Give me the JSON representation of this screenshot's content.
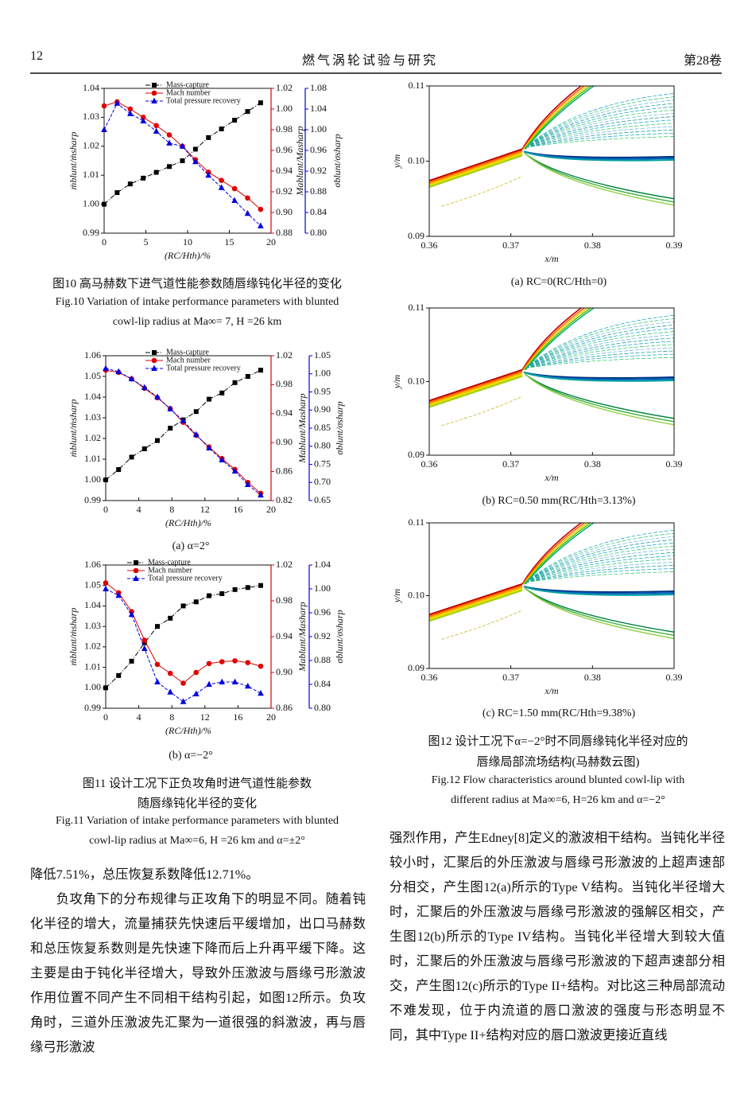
{
  "header": {
    "page_number": "12",
    "journal": "燃气涡轮试验与研究",
    "volume": "第28卷"
  },
  "chart_data": [
    {
      "type": "line",
      "x": [
        0,
        1.56,
        3.13,
        4.69,
        6.25,
        7.81,
        9.38,
        10.94,
        12.5,
        14.06,
        15.63,
        17.19,
        18.75
      ],
      "xlim": [
        0,
        20
      ],
      "xticks": [
        0,
        5,
        10,
        15,
        20
      ],
      "x_label": "(RC/Hth)/%",
      "ylim": [
        0.99,
        1.04
      ],
      "yticks": [
        0.99,
        {
          "value": 1,
          "label": "1.00"
        },
        1.01,
        1.02,
        1.03,
        1.04
      ],
      "y_label": "ṁblunt/ṁsharp",
      "y2lim": [
        0.88,
        1.02
      ],
      "y2ticks": [
        0.88,
        {
          "value": 0.9,
          "label": "0.90"
        },
        0.92,
        0.94,
        0.96,
        0.98,
        {
          "value": 1,
          "label": "1.00"
        },
        1.02
      ],
      "y2_label": "Mablunt/Masharp",
      "y3lim": [
        0.8,
        1.08
      ],
      "y3ticks": [
        {
          "value": 0.8,
          "label": "0.80"
        },
        0.84,
        0.88,
        0.92,
        0.96,
        {
          "value": 1,
          "label": "1.00"
        },
        1.04,
        1.08
      ],
      "y3_label": "σblunt/σsharp",
      "series": [
        {
          "name": "Mass-capture",
          "color": "#000000",
          "marker": "square",
          "dash": "6 2 1 2",
          "axis": "y",
          "values": [
            1.0,
            1.004,
            1.007,
            1.009,
            1.011,
            1.013,
            1.015,
            1.019,
            1.023,
            1.026,
            1.029,
            1.032,
            1.035
          ]
        },
        {
          "name": "Mach number",
          "color": "#e00000",
          "marker": "circle",
          "dash": "none",
          "axis": "y2",
          "values": [
            1.003,
            1.007,
            1.0,
            0.992,
            0.984,
            0.975,
            0.964,
            0.951,
            0.939,
            0.931,
            0.923,
            0.914,
            0.903
          ]
        },
        {
          "name": "Total pressure recovery",
          "color": "#0000e0",
          "marker": "triangle",
          "dash": "4 2",
          "axis": "y3",
          "values": [
            1.0,
            1.051,
            1.031,
            1.017,
            0.997,
            0.974,
            0.968,
            0.938,
            0.912,
            0.888,
            0.863,
            0.838,
            0.814
          ]
        }
      ]
    },
    {
      "type": "line",
      "subcaption": "(a)  α=2°",
      "x": [
        0,
        1.56,
        3.13,
        4.69,
        6.25,
        7.81,
        9.38,
        10.94,
        12.5,
        14.06,
        15.63,
        17.19,
        18.75
      ],
      "xlim": [
        0,
        20
      ],
      "xticks": [
        0,
        4,
        8,
        12,
        16,
        20
      ],
      "x_label": "(RC/Hth)/%",
      "ylim": [
        0.99,
        1.06
      ],
      "yticks": [
        0.99,
        {
          "value": 1,
          "label": "1.00"
        },
        1.01,
        1.02,
        1.03,
        1.04,
        1.05,
        1.06
      ],
      "y_label": "ṁblunt/ṁsharp",
      "y2lim": [
        0.82,
        1.02
      ],
      "y2ticks": [
        0.82,
        0.86,
        {
          "value": 0.9,
          "label": "0.90"
        },
        0.94,
        0.98,
        1.02
      ],
      "y2_label": "Mablunt/Masharp",
      "y3lim": [
        0.65,
        1.05
      ],
      "y3ticks": [
        0.65,
        {
          "value": 0.7,
          "label": "0.70"
        },
        0.75,
        {
          "value": 0.8,
          "label": "0.80"
        },
        0.85,
        {
          "value": 0.9,
          "label": "0.90"
        },
        0.95,
        {
          "value": 1,
          "label": "1.00"
        },
        1.05
      ],
      "y3_label": "σblunt/σsharp",
      "series": [
        {
          "name": "Mass-capture",
          "color": "#000000",
          "marker": "square",
          "dash": "6 2 1 2",
          "axis": "y",
          "values": [
            1.0,
            1.005,
            1.011,
            1.015,
            1.019,
            1.025,
            1.029,
            1.033,
            1.039,
            1.042,
            1.047,
            1.05,
            1.053
          ]
        },
        {
          "name": "Mach number",
          "color": "#e00000",
          "marker": "circle",
          "dash": "none",
          "axis": "y2",
          "values": [
            1.0,
            0.997,
            0.988,
            0.975,
            0.962,
            0.947,
            0.928,
            0.91,
            0.894,
            0.878,
            0.863,
            0.845,
            0.83
          ]
        },
        {
          "name": "Total pressure recovery",
          "color": "#0000e0",
          "marker": "triangle",
          "dash": "4 2",
          "axis": "y3",
          "values": [
            1.015,
            1.006,
            0.986,
            0.962,
            0.936,
            0.903,
            0.87,
            0.832,
            0.795,
            0.762,
            0.731,
            0.694,
            0.665
          ]
        }
      ]
    },
    {
      "type": "line",
      "subcaption": "(b)  α=−2°",
      "x": [
        0,
        1.56,
        3.13,
        4.69,
        6.25,
        7.81,
        9.38,
        10.94,
        12.5,
        14.06,
        15.63,
        17.19,
        18.75
      ],
      "xlim": [
        0,
        20
      ],
      "xticks": [
        0,
        4,
        8,
        12,
        16,
        20
      ],
      "x_label": "(RC/Hth)/%",
      "ylim": [
        0.99,
        1.06
      ],
      "yticks": [
        0.99,
        {
          "value": 1,
          "label": "1.00"
        },
        1.01,
        1.02,
        1.03,
        1.04,
        1.05,
        1.06
      ],
      "y_label": "ṁblunt/ṁsharp",
      "y2lim": [
        0.86,
        1.02
      ],
      "y2ticks": [
        0.86,
        {
          "value": 0.9,
          "label": "0.90"
        },
        0.94,
        0.98,
        1.02
      ],
      "y2_label": "Mablunt/Masharp",
      "y3lim": [
        0.8,
        1.04
      ],
      "y3ticks": [
        {
          "value": 0.8,
          "label": "0.80"
        },
        0.84,
        0.88,
        0.92,
        0.96,
        {
          "value": 1,
          "label": "1.00"
        },
        1.04
      ],
      "y3_label": "σblunt/σsharp",
      "series": [
        {
          "name": "Mass-capture",
          "color": "#000000",
          "marker": "square",
          "dash": "6 2 1 2",
          "axis": "y",
          "values": [
            1.0,
            1.006,
            1.013,
            1.022,
            1.03,
            1.034,
            1.04,
            1.042,
            1.045,
            1.046,
            1.048,
            1.049,
            1.05
          ]
        },
        {
          "name": "Mach number",
          "color": "#e00000",
          "marker": "circle",
          "dash": "none",
          "axis": "y2",
          "values": [
            1.0,
            0.989,
            0.968,
            0.936,
            0.909,
            0.899,
            0.888,
            0.9,
            0.91,
            0.912,
            0.913,
            0.911,
            0.907
          ]
        },
        {
          "name": "Total pressure recovery",
          "color": "#0000e0",
          "marker": "triangle",
          "dash": "4 2",
          "axis": "y3",
          "values": [
            1.0,
            0.989,
            0.957,
            0.9,
            0.844,
            0.827,
            0.811,
            0.824,
            0.84,
            0.844,
            0.844,
            0.837,
            0.825
          ]
        }
      ]
    },
    {
      "type": "contour",
      "subcaption": "(a)  RC=0(RC/Hth=0)",
      "xlim": [
        0.36,
        0.39
      ],
      "xticks": [
        0.36,
        0.37,
        0.38,
        0.39
      ],
      "x_label": "x/m",
      "ylim": [
        0.09,
        0.11
      ],
      "yticks": [
        0.09,
        {
          "value": 0.1,
          "label": "0.10"
        },
        0.11
      ],
      "y_label": "y/m"
    },
    {
      "type": "contour",
      "subcaption": "(b)  RC=0.50 mm(RC/Hth=3.13%)",
      "xlim": [
        0.36,
        0.39
      ],
      "xticks": [
        0.36,
        0.37,
        0.38,
        0.39
      ],
      "x_label": "x/m",
      "ylim": [
        0.09,
        0.11
      ],
      "yticks": [
        0.09,
        {
          "value": 0.1,
          "label": "0.10"
        },
        0.11
      ],
      "y_label": "y/m"
    },
    {
      "type": "contour",
      "subcaption": "(c)  RC=1.50 mm(RC/Hth=9.38%)",
      "xlim": [
        0.36,
        0.39
      ],
      "xticks": [
        0.36,
        0.37,
        0.38,
        0.39
      ],
      "x_label": "x/m",
      "ylim": [
        0.09,
        0.11
      ],
      "yticks": [
        0.09,
        {
          "value": 0.1,
          "label": "0.10"
        },
        0.11
      ],
      "y_label": "y/m"
    }
  ],
  "captions": {
    "fig10_cn": "图10  高马赫数下进气道性能参数随唇缘钝化半径的变化",
    "fig10_en": [
      "Fig.10  Variation of intake performance parameters with blunted",
      "cowl-lip radius at Ma∞= 7, H =26 km"
    ],
    "fig11_cn": [
      "图11  设计工况下正负攻角时进气道性能参数",
      "随唇缘钝化半径的变化"
    ],
    "fig11_en": [
      "Fig.11  Variation of intake performance parameters with blunted",
      "cowl-lip radius at Ma∞=6, H =26 km and α=±2°"
    ],
    "fig12_cn": [
      "图12  设计工况下α=−2°时不同唇缘钝化半径对应的",
      "唇缘局部流场结构(马赫数云图)"
    ],
    "fig12_en": [
      "Fig.12  Flow characteristics around blunted cowl-lip with",
      "different radius at Ma∞=6, H=26 km and α=−2°"
    ]
  },
  "body": {
    "left": [
      "降低7.51%，总压恢复系数降低12.71%。",
      "负攻角下的分布规律与正攻角下的明显不同。随着钝化半径的增大，流量捕获先快速后平缓增加，出口马赫数和总压恢复系数则是先快速下降而后上升再平缓下降。这主要是由于钝化半径增大，导致外压激波与唇缘弓形激波作用位置不同产生不同相干结构引起，如图12所示。负攻角时，三道外压激波先汇聚为一道很强的斜激波，再与唇缘弓形激波"
    ],
    "right": [
      "强烈作用，产生Edney[8]定义的激波相干结构。当钝化半径较小时，汇聚后的外压激波与唇缘弓形激波的上超声速部分相交，产生图12(a)所示的Type V结构。当钝化半径增大时，汇聚后的外压激波与唇缘弓形激波的强解区相交，产生图12(b)所示的Type IV结构。当钝化半径增大到较大值时，汇聚后的外压激波与唇缘弓形激波的下超声速部分相交，产生图12(c)所示的Type II+结构。对比这三种局部流动不难发现，位于内流道的唇口激波的强度与形态明显不同，其中Type II+结构对应的唇口激波更接近直线"
    ]
  }
}
